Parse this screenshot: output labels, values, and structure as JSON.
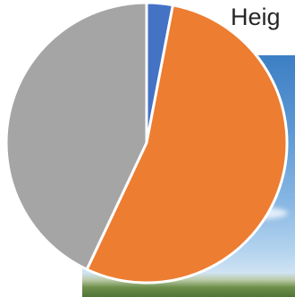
{
  "page": {
    "partial_title": "Heig"
  },
  "chart_data": {
    "type": "pie",
    "title": "",
    "series": [
      {
        "values": [
          3,
          54,
          43
        ],
        "colors": [
          "#4472C4",
          "#ED7D31",
          "#A5A5A5"
        ]
      }
    ],
    "start_angle": "12 o'clock",
    "direction": "clockwise",
    "legend": "none"
  }
}
